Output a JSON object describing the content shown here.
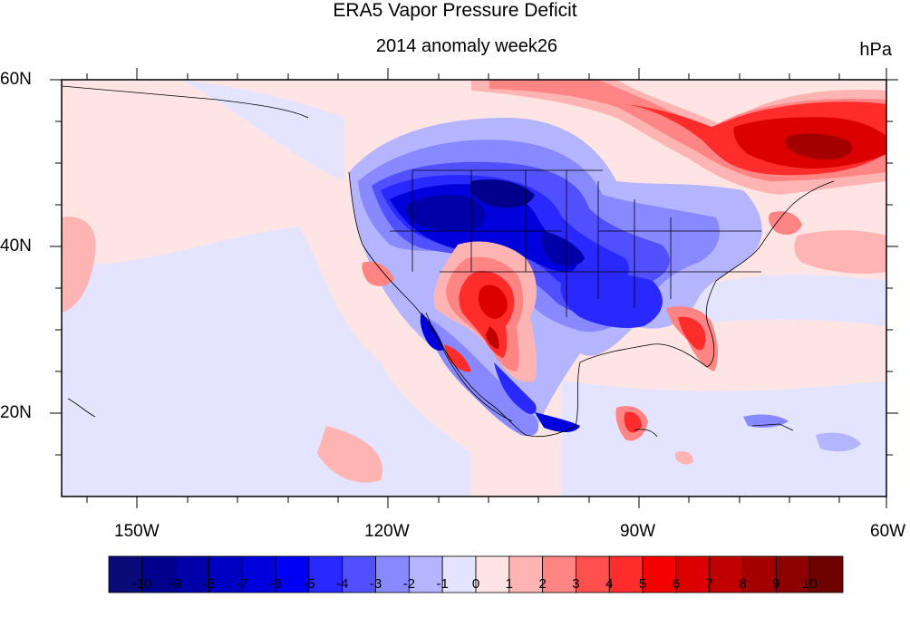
{
  "figure": {
    "title": "ERA5 Vapor Pressure Deficit",
    "subtitle_left": "2014 anomaly week26",
    "subtitle_right": "hPa"
  },
  "map": {
    "projection": "cylindrical-equidistant",
    "lon_range": [
      -160,
      -60
    ],
    "lat_range": [
      10,
      60
    ],
    "lat_ticks": [
      "60N",
      "40N",
      "20N"
    ],
    "lon_ticks": [
      "150W",
      "120W",
      "90W",
      "60W"
    ],
    "variable": "vapor pressure deficit anomaly",
    "units": "hPa"
  },
  "colorbar": {
    "labels": [
      "-10",
      "-9",
      "-8",
      "-7",
      "-6",
      "-5",
      "-4",
      "-3",
      "-2",
      "-1",
      "0",
      "1",
      "2",
      "3",
      "4",
      "5",
      "6",
      "7",
      "8",
      "9",
      "10"
    ],
    "colors": [
      "#0a0a78",
      "#00008c",
      "#0000a8",
      "#0000c4",
      "#0000dc",
      "#0000f5",
      "#2828ff",
      "#5050ff",
      "#8888ff",
      "#b4b4ff",
      "#e4e4ff",
      "#ffe4e4",
      "#ffb4b4",
      "#ff8484",
      "#ff5050",
      "#ff2c2c",
      "#f50000",
      "#dc0000",
      "#c00000",
      "#a40000",
      "#8c0000",
      "#6e0000"
    ]
  }
}
